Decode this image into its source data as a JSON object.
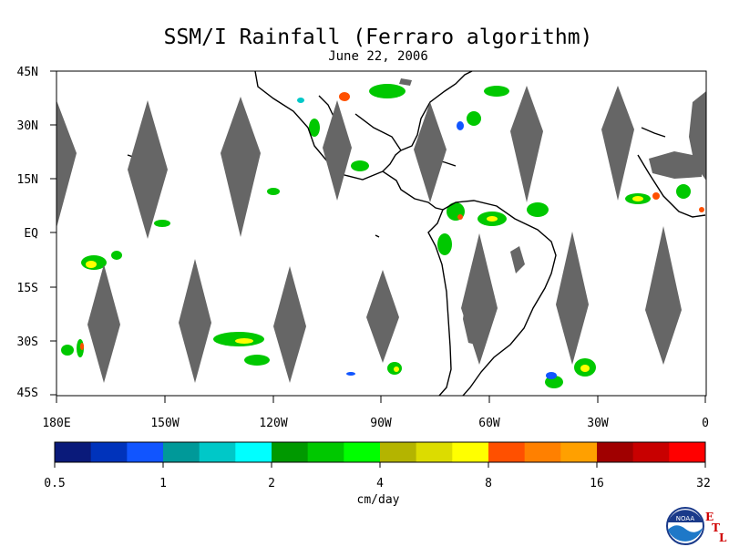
{
  "title": "SSM/I Rainfall (Ferraro algorithm)",
  "subtitle": "June 22, 2006",
  "lat_labels": [
    "45N",
    "30N",
    "15N",
    "EQ",
    "15S",
    "30S",
    "45S"
  ],
  "lon_labels": [
    "180E",
    "150W",
    "120W",
    "90W",
    "60W",
    "30W",
    "0"
  ],
  "colorbar": {
    "labels": [
      "0.5",
      "1",
      "2",
      "4",
      "8",
      "16",
      "32"
    ],
    "units": "cm/day",
    "colors": [
      "#0a1a7a",
      "#0033bb",
      "#1155ff",
      "#009999",
      "#00c8c8",
      "#00ffff",
      "#009900",
      "#00c800",
      "#00ff00",
      "#b4b400",
      "#dcdc00",
      "#ffff00",
      "#ff5000",
      "#ff8000",
      "#ffa000",
      "#a00000",
      "#c80000",
      "#ff0000"
    ]
  },
  "map": {
    "lat_range": [
      -45,
      45
    ],
    "lon_range": [
      -180,
      0
    ],
    "no_data_color": "#666666",
    "land_outline_color": "#000000"
  },
  "logo": {
    "text": "NOAA",
    "etl": [
      "E",
      "T",
      "L"
    ]
  }
}
